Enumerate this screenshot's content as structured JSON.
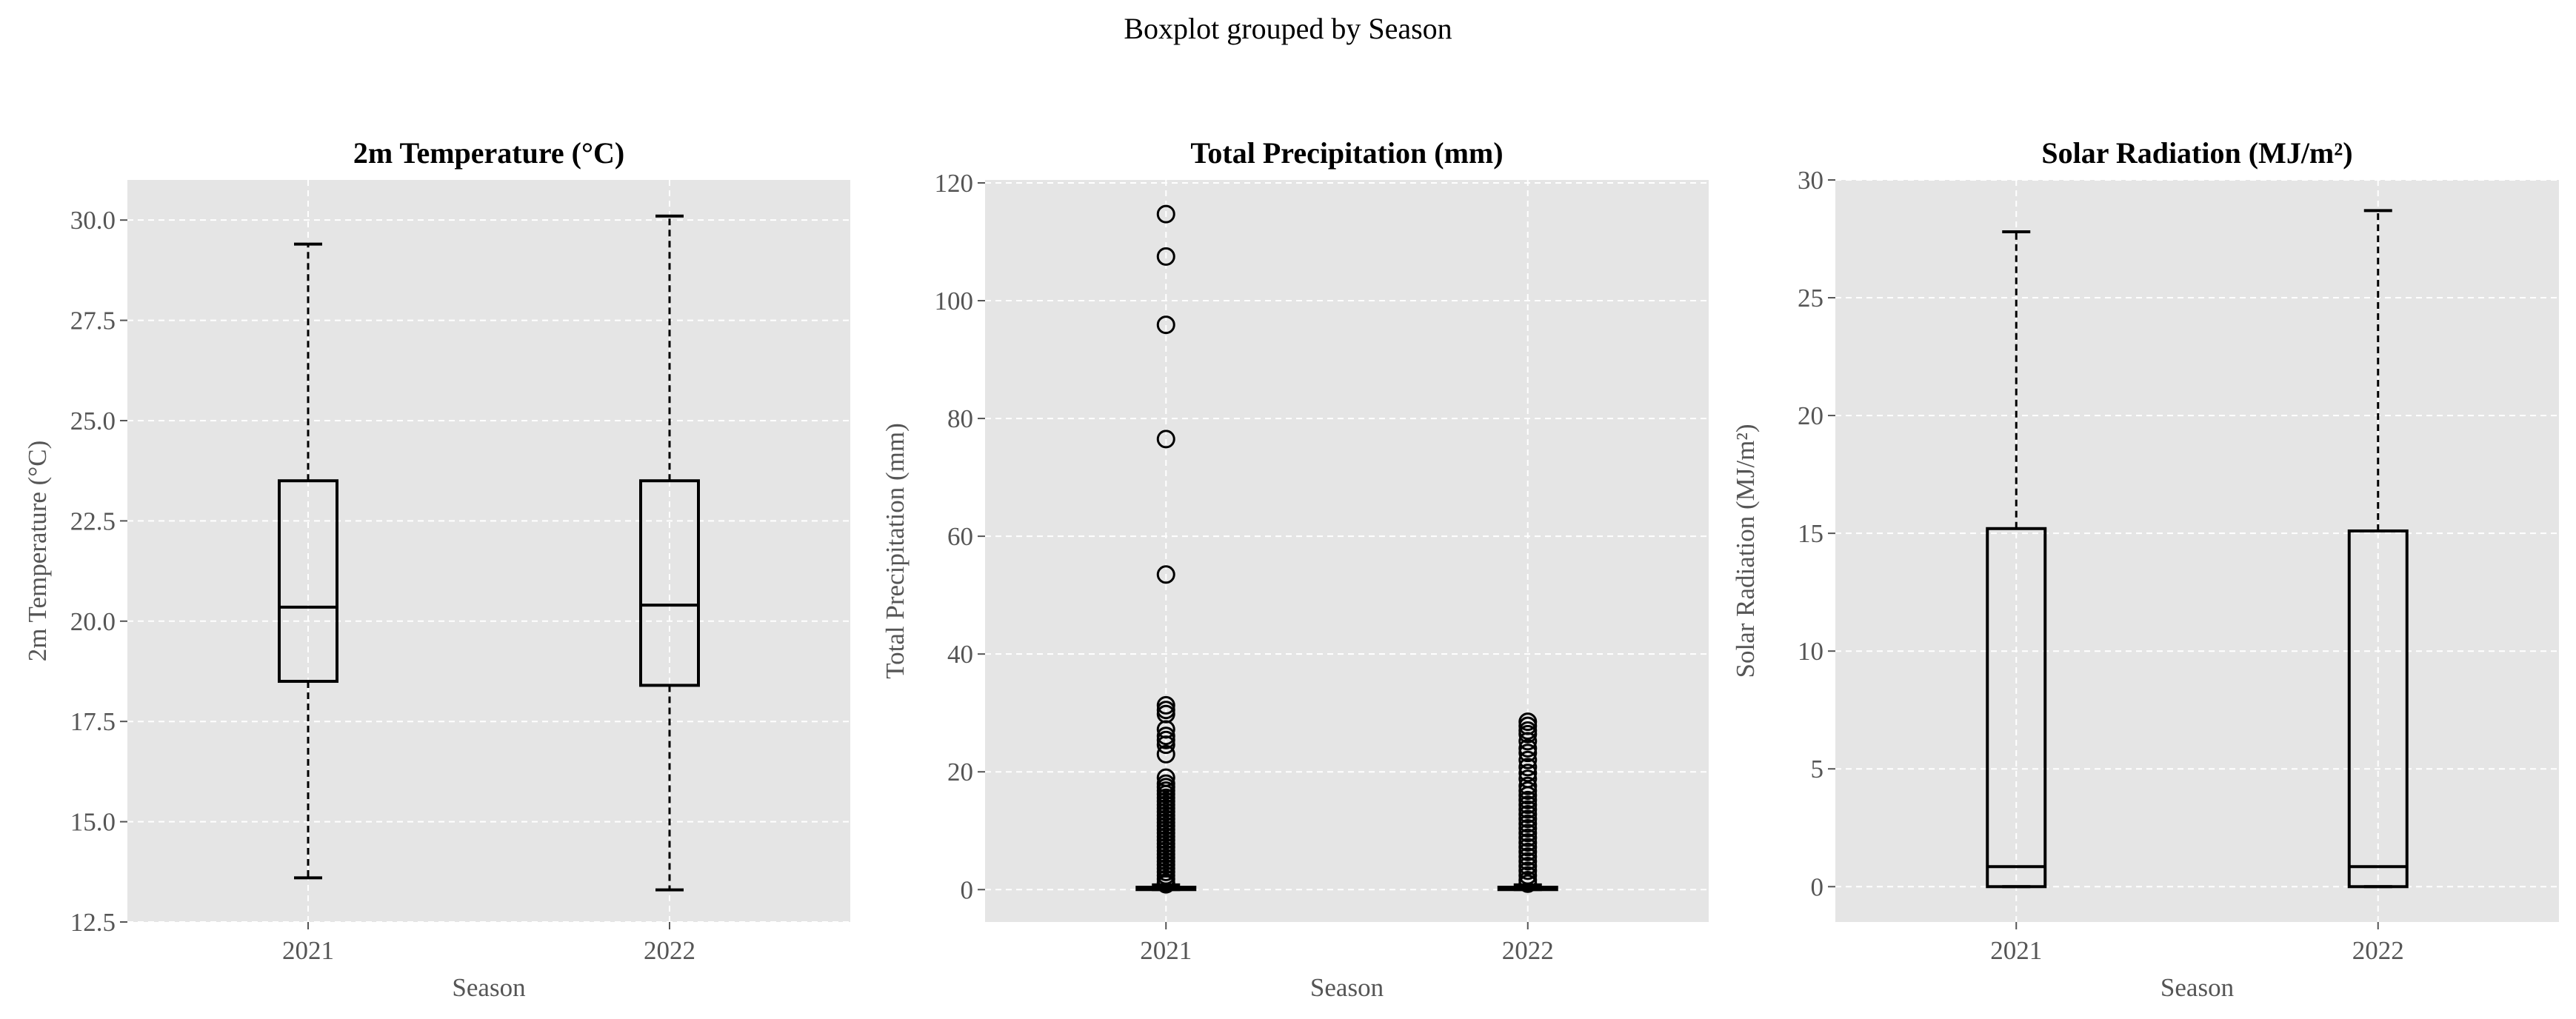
{
  "figure": {
    "title": "Boxplot grouped by Season"
  },
  "colors": {
    "panel_bg": "#e5e5e5",
    "grid": "#ffffff",
    "box": "#000000",
    "text": "#555555"
  },
  "chart_data": [
    {
      "type": "box",
      "title": "2m Temperature (°C)",
      "xlabel": "Season",
      "ylabel": "2m Temperature (°C)",
      "categories": [
        "2021",
        "2022"
      ],
      "ylim": [
        12.5,
        31.0
      ],
      "yticks": [
        12.5,
        15.0,
        17.5,
        20.0,
        22.5,
        25.0,
        27.5,
        30.0
      ],
      "ytick_labels": [
        "12.5",
        "15.0",
        "17.5",
        "20.0",
        "22.5",
        "25.0",
        "27.5",
        "30.0"
      ],
      "grid": true,
      "boxes": [
        {
          "category": "2021",
          "whisker_low": 13.6,
          "q1": 18.5,
          "median": 20.35,
          "q3": 23.5,
          "whisker_high": 29.4,
          "outliers": []
        },
        {
          "category": "2022",
          "whisker_low": 13.3,
          "q1": 18.4,
          "median": 20.4,
          "q3": 23.5,
          "whisker_high": 30.1,
          "outliers": []
        }
      ]
    },
    {
      "type": "box",
      "title": "Total Precipitation (mm)",
      "xlabel": "Season",
      "ylabel": "Total Precipitation (mm)",
      "categories": [
        "2021",
        "2022"
      ],
      "ylim": [
        -5.5,
        120.5
      ],
      "yticks": [
        0,
        20,
        40,
        60,
        80,
        100,
        120
      ],
      "ytick_labels": [
        "0",
        "20",
        "40",
        "60",
        "80",
        "100",
        "120"
      ],
      "grid": true,
      "boxes": [
        {
          "category": "2021",
          "whisker_low": 0.0,
          "q1": 0.0,
          "median": 0.2,
          "q3": 0.4,
          "whisker_high": 0.8,
          "outliers": [
            114.7,
            107.5,
            95.9,
            76.5,
            53.5,
            31.3,
            30.5,
            29.8,
            27.2,
            26.1,
            25.4,
            24.6,
            23.0,
            19.0,
            18.0,
            17.4,
            16.8,
            16.2,
            15.6,
            15.0,
            14.4,
            13.8,
            13.2,
            12.6,
            12.0,
            11.4,
            10.8,
            10.2,
            9.6,
            9.0,
            8.4,
            7.8,
            7.2,
            6.6,
            6.0,
            5.4,
            4.8,
            4.2,
            3.6,
            3.0,
            2.4,
            1.8,
            1.2,
            0.9
          ]
        },
        {
          "category": "2022",
          "whisker_low": 0.0,
          "q1": 0.0,
          "median": 0.2,
          "q3": 0.4,
          "whisker_high": 0.8,
          "outliers": [
            28.5,
            27.8,
            27.0,
            26.4,
            25.2,
            24.0,
            23.2,
            22.0,
            20.8,
            19.8,
            18.8,
            17.6,
            16.8,
            16.0,
            15.2,
            14.4,
            13.6,
            12.8,
            12.0,
            11.2,
            10.4,
            9.6,
            8.8,
            8.0,
            7.2,
            6.4,
            5.6,
            4.8,
            4.0,
            3.2,
            2.4,
            1.6,
            1.0
          ]
        }
      ]
    },
    {
      "type": "box",
      "title": "Solar Radiation (MJ/m²)",
      "xlabel": "Season",
      "ylabel": "Solar Radiation (MJ/m²)",
      "categories": [
        "2021",
        "2022"
      ],
      "ylim": [
        -1.5,
        30.0
      ],
      "yticks": [
        0,
        5,
        10,
        15,
        20,
        25,
        30
      ],
      "ytick_labels": [
        "0",
        "5",
        "10",
        "15",
        "20",
        "25",
        "30"
      ],
      "grid": true,
      "boxes": [
        {
          "category": "2021",
          "whisker_low": 0.0,
          "q1": 0.0,
          "median": 0.85,
          "q3": 15.2,
          "whisker_high": 27.8,
          "outliers": []
        },
        {
          "category": "2022",
          "whisker_low": 0.0,
          "q1": 0.0,
          "median": 0.85,
          "q3": 15.1,
          "whisker_high": 28.7,
          "outliers": []
        }
      ]
    }
  ]
}
